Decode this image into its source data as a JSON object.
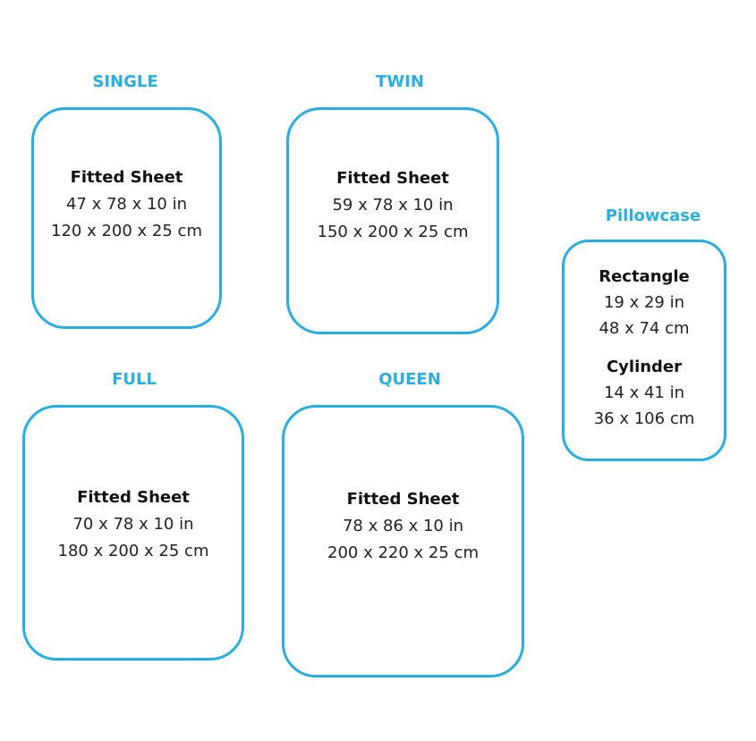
{
  "accent_color": "#29aee3",
  "sizes": [
    {
      "title": "SINGLE",
      "heading": "Fitted Sheet",
      "inches": "47 x 78 x 10 in",
      "cm": "120 x 200 x 25 cm"
    },
    {
      "title": "TWIN",
      "heading": "Fitted Sheet",
      "inches": "59 x 78 x 10 in",
      "cm": "150 x 200 x 25 cm"
    },
    {
      "title": "FULL",
      "heading": "Fitted Sheet",
      "inches": "70 x 78 x 10 in",
      "cm": "180 x 200 x 25 cm"
    },
    {
      "title": "QUEEN",
      "heading": "Fitted Sheet",
      "inches": "78 x 86 x 10 in",
      "cm": "200 x 220 x 25 cm"
    }
  ],
  "pillowcase": {
    "title": "Pillowcase",
    "types": [
      {
        "heading": "Rectangle",
        "inches": "19 x 29 in",
        "cm": "48 x 74 cm"
      },
      {
        "heading": "Cylinder",
        "inches": "14 x 41 in",
        "cm": "36 x 106 cm"
      }
    ]
  }
}
